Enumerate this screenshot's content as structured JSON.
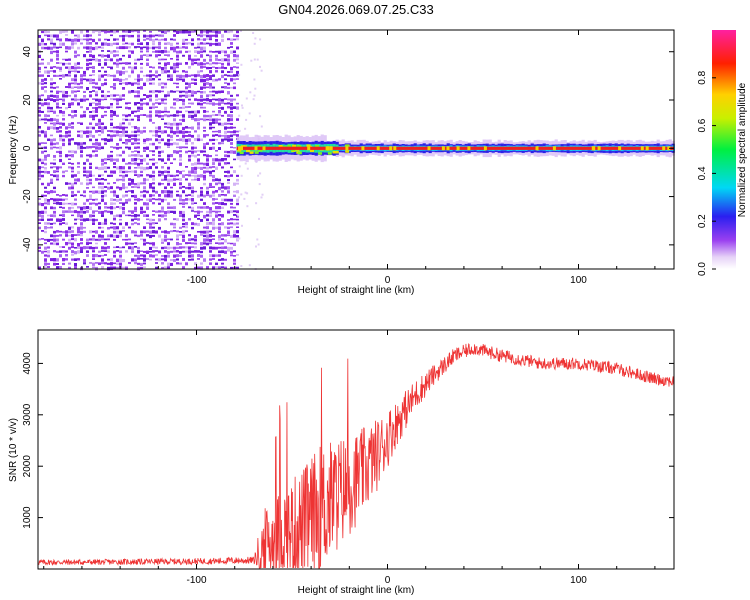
{
  "figure": {
    "title": "GN04.2026.069.07.25.C33"
  },
  "chart_data": [
    {
      "type": "heatmap",
      "xlabel": "Height of straight line (km)",
      "ylabel": "Frequency (Hz)",
      "xlim": [
        -183,
        150
      ],
      "ylim": [
        -50,
        49
      ],
      "xticks": [
        -100,
        0,
        100
      ],
      "xtick_labels": [
        "-100",
        "0",
        "100"
      ],
      "yticks": [
        -40,
        -20,
        0,
        20,
        40
      ],
      "ytick_labels": [
        "-40",
        "-20",
        "0",
        "20",
        "40"
      ],
      "noise_region_x": [
        -183,
        -79
      ],
      "signal_start_x": -79,
      "signal_frequency_hz": 0,
      "colorbar": {
        "label": "Normalized spectral amplitude",
        "range": [
          0,
          1
        ],
        "ticks": [
          0.0,
          0.2,
          0.4,
          0.6,
          0.8
        ],
        "tick_labels": [
          "0.0",
          "0.2",
          "0.4",
          "0.6",
          "0.8"
        ]
      }
    },
    {
      "type": "line",
      "xlabel": "Height of straight line (km)",
      "ylabel": "SNR (10 * v/v)",
      "xlim": [
        -183,
        150
      ],
      "ylim": [
        0,
        4650
      ],
      "xticks": [
        -100,
        0,
        100
      ],
      "xtick_labels": [
        "-100",
        "0",
        "100"
      ],
      "yticks": [
        1000,
        2000,
        3000,
        4000
      ],
      "ytick_labels": [
        "1000",
        "2000",
        "3000",
        "4000"
      ],
      "color": "#ee3333",
      "envelope": {
        "x": [
          -183,
          -150,
          -100,
          -70,
          -65,
          -55,
          -45,
          -35,
          -25,
          -15,
          -5,
          5,
          15,
          25,
          35,
          45,
          60,
          80,
          100,
          120,
          140,
          150
        ],
        "mean": [
          130,
          135,
          150,
          170,
          450,
          700,
          850,
          1150,
          1500,
          1800,
          2250,
          2850,
          3400,
          3800,
          4150,
          4300,
          4150,
          4000,
          4000,
          3900,
          3700,
          3650
        ],
        "spread": [
          55,
          55,
          60,
          70,
          700,
          900,
          1100,
          1300,
          1100,
          900,
          700,
          450,
          300,
          200,
          150,
          130,
          130,
          120,
          120,
          120,
          120,
          120
        ]
      }
    }
  ]
}
